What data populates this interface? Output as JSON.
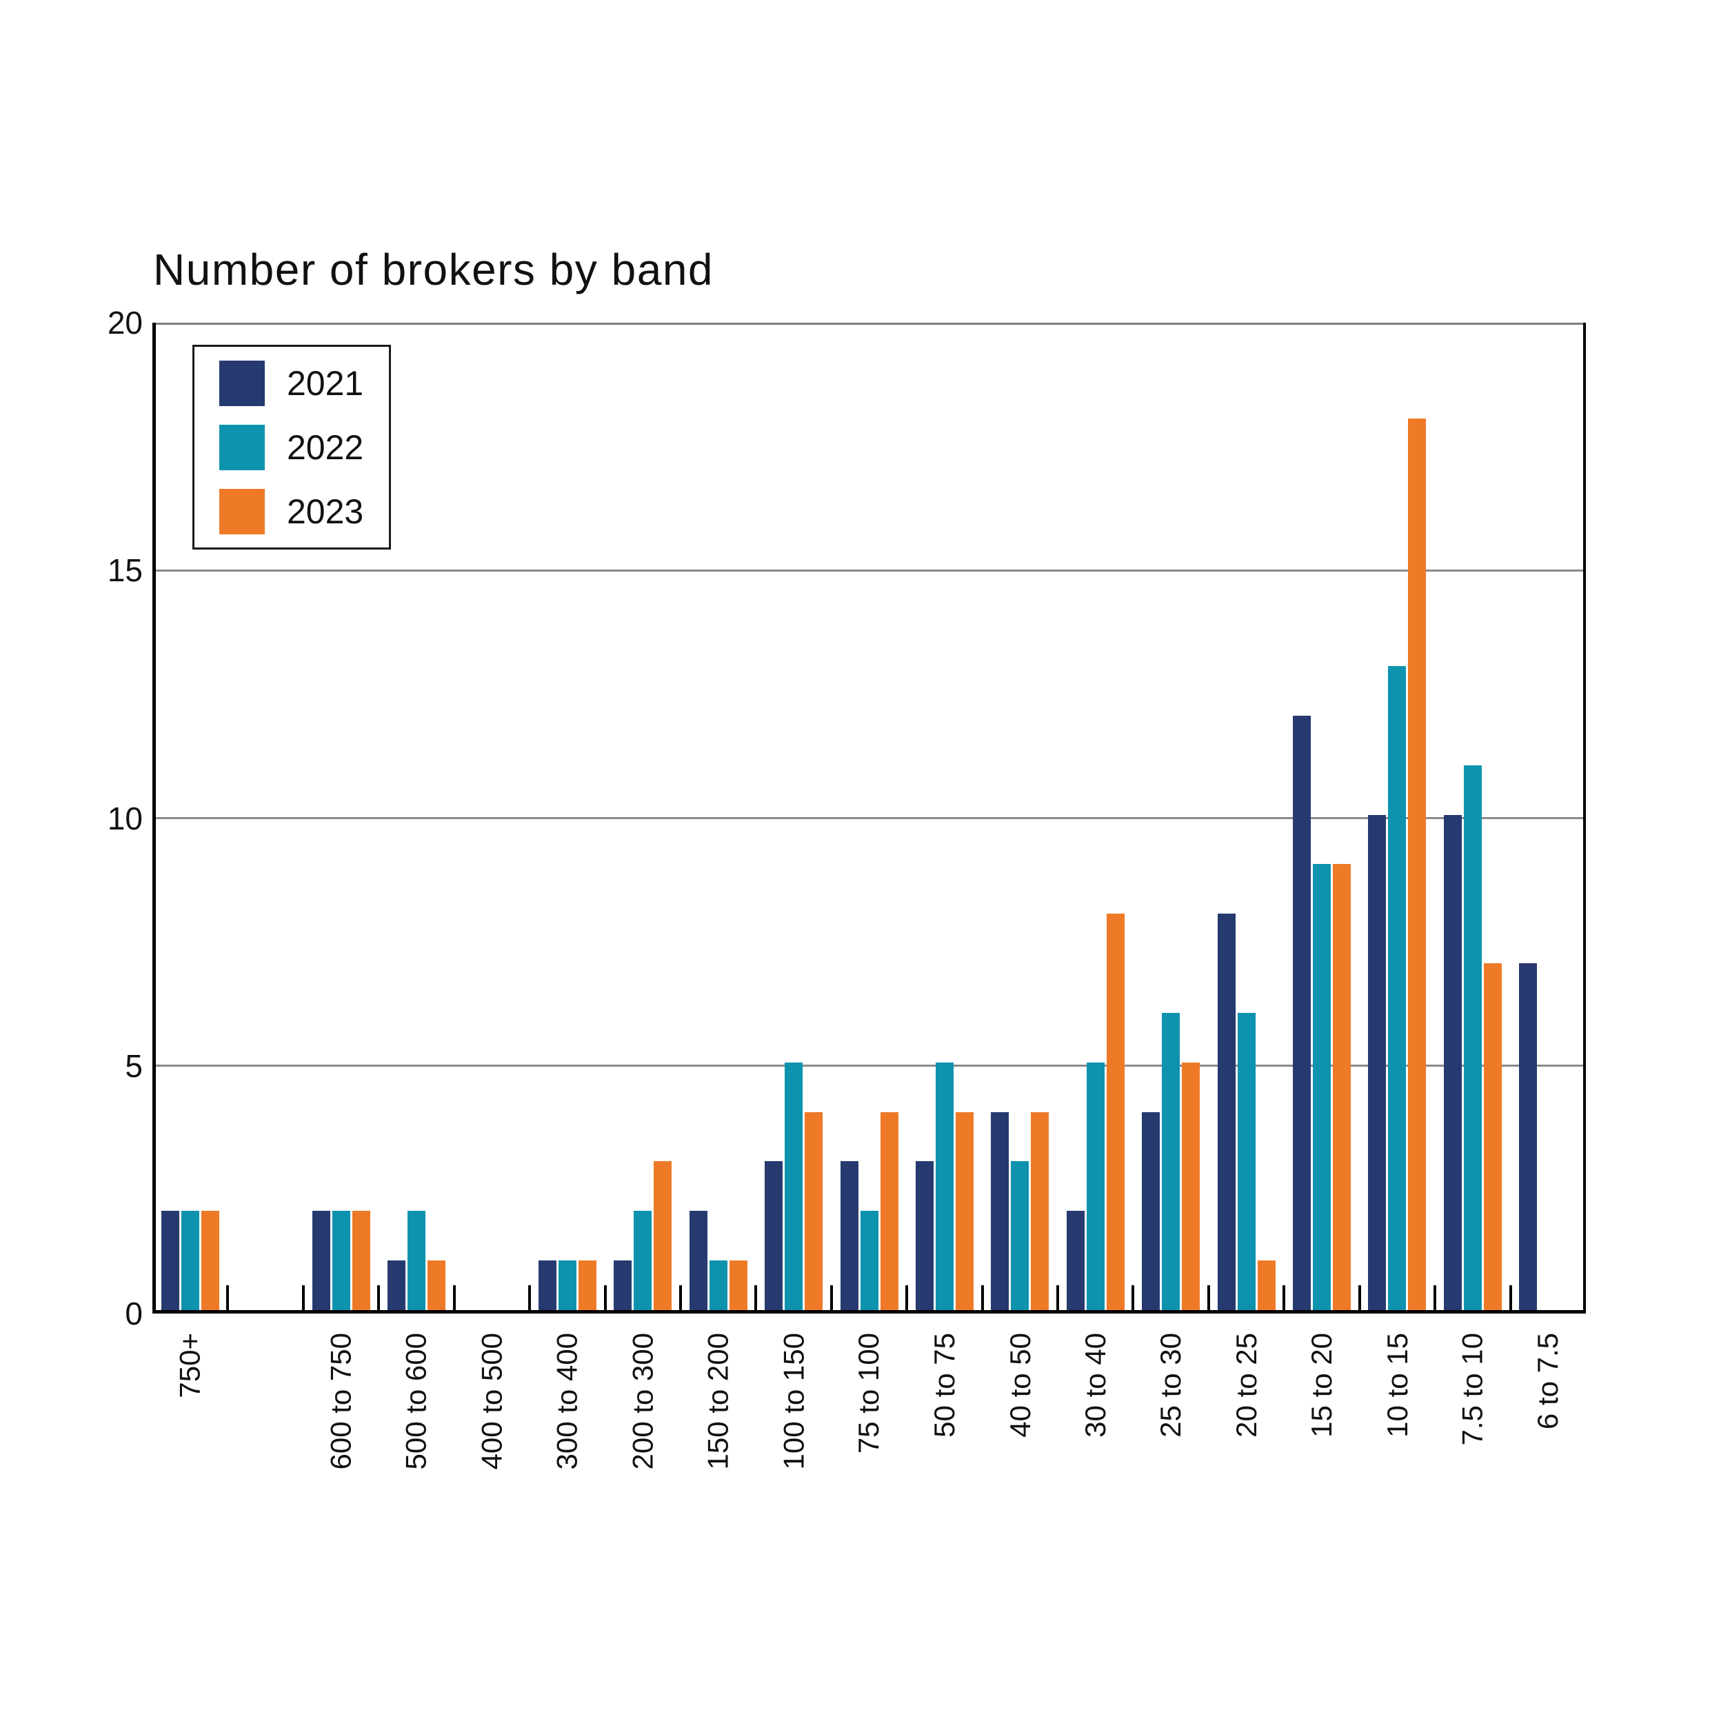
{
  "title": "Number of brokers by band",
  "chart_data": {
    "type": "bar",
    "title": "Number of brokers by band",
    "categories": [
      "750+",
      "",
      "600 to 750",
      "500 to 600",
      "400 to 500",
      "300 to 400",
      "200 to 300",
      "150 to 200",
      "100 to 150",
      "75 to 100",
      "50 to 75",
      "40 to 50",
      "30 to 40",
      "25 to 30",
      "20 to 25",
      "15 to 20",
      "10 to 15",
      "7.5 to 10",
      "6 to 7.5"
    ],
    "series": [
      {
        "name": "2021",
        "color": "#273A70",
        "values": [
          2,
          0,
          2,
          1,
          0,
          1,
          1,
          2,
          3,
          3,
          3,
          4,
          2,
          4,
          8,
          12,
          10,
          10,
          7
        ]
      },
      {
        "name": "2022",
        "color": "#0E93AF",
        "values": [
          2,
          0,
          2,
          2,
          0,
          1,
          2,
          1,
          5,
          2,
          5,
          3,
          5,
          6,
          6,
          9,
          13,
          11,
          0
        ]
      },
      {
        "name": "2023",
        "color": "#EE7A28",
        "values": [
          2,
          0,
          2,
          1,
          0,
          1,
          3,
          1,
          4,
          4,
          4,
          4,
          8,
          5,
          1,
          9,
          18,
          7,
          0
        ]
      }
    ],
    "xlabel": "",
    "ylabel": "",
    "ylim": [
      0,
      20
    ],
    "yticks": [
      0,
      5,
      10,
      15,
      20
    ],
    "grid": "horizontal",
    "grid_color": "#8a8a8a",
    "axis_color": "#000000",
    "top_border_color": "#7d7d7d",
    "legend_position": "top-left"
  }
}
